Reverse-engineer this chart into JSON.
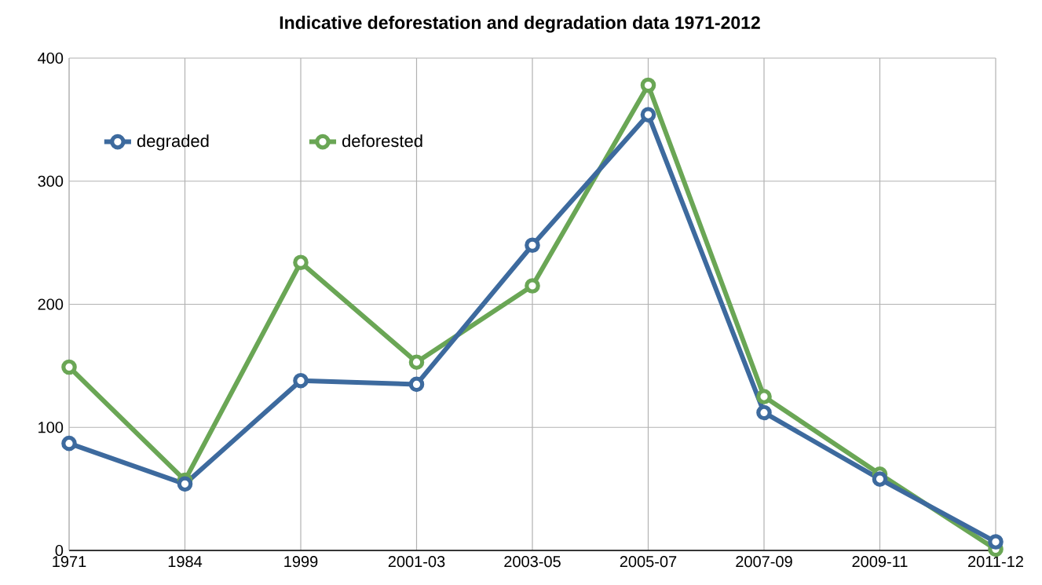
{
  "chart_data": {
    "type": "line",
    "title": "Indicative deforestation and degradation data 1971-2012",
    "categories": [
      "1971",
      "1984",
      "1999",
      "2001-03",
      "2003-05",
      "2005-07",
      "2007-09",
      "2009-11",
      "2011-12"
    ],
    "series": [
      {
        "name": "degraded",
        "color": "#3d6a9e",
        "values": [
          87,
          54,
          138,
          135,
          248,
          354,
          112,
          58,
          7
        ]
      },
      {
        "name": "deforested",
        "color": "#6aa655",
        "values": [
          149,
          57,
          234,
          153,
          215,
          378,
          125,
          62,
          1
        ]
      }
    ],
    "ylim": [
      0,
      400
    ],
    "yticks": [
      0,
      100,
      200,
      300,
      400
    ],
    "grid": true,
    "legend": "top left",
    "marker": "circle",
    "line_style": "solid"
  }
}
